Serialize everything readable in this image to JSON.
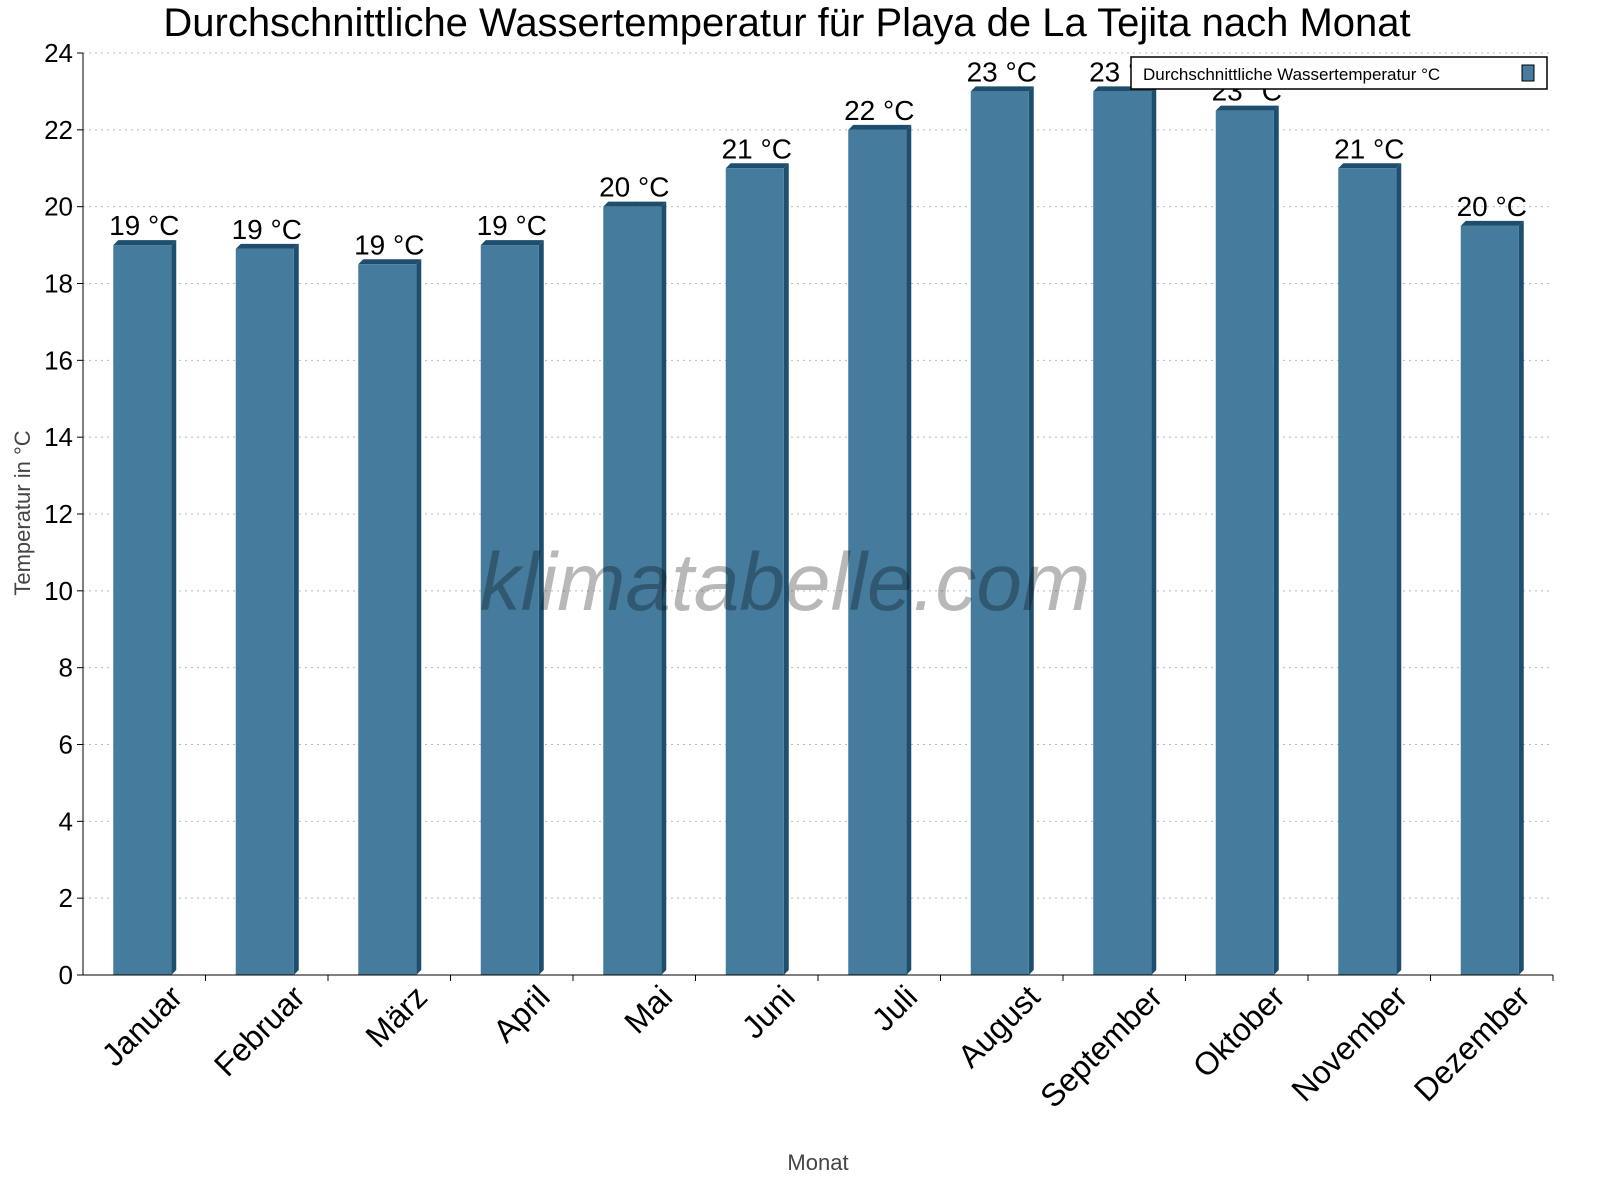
{
  "chart_data": {
    "type": "bar",
    "title": "Durchschnittliche Wassertemperatur für Playa de La Tejita nach Monat",
    "xlabel": "Monat",
    "ylabel": "Temperatur in °C",
    "ylim": [
      0,
      24
    ],
    "yticks": [
      0,
      2,
      4,
      6,
      8,
      10,
      12,
      14,
      16,
      18,
      20,
      22,
      24
    ],
    "grid": true,
    "legend_placement": "top-right",
    "categories": [
      "Januar",
      "Februar",
      "März",
      "April",
      "Mai",
      "Juni",
      "Juli",
      "August",
      "September",
      "Oktober",
      "November",
      "Dezember"
    ],
    "series": [
      {
        "name": "Durchschnittliche Wassertemperatur °C",
        "values": [
          19.0,
          18.9,
          18.5,
          19.0,
          20.0,
          21.0,
          22.0,
          23.0,
          23.0,
          22.5,
          21.0,
          19.5
        ],
        "labels": [
          "19 °C",
          "19 °C",
          "19 °C",
          "19 °C",
          "20 °C",
          "21 °C",
          "22 °C",
          "23 °C",
          "23 °C",
          "23 °C",
          "21 °C",
          "20 °C"
        ]
      }
    ],
    "colors": {
      "bar": "#457b9d",
      "bar_dark": "#1d4e6e"
    },
    "watermark": "klimatabelle.com"
  }
}
